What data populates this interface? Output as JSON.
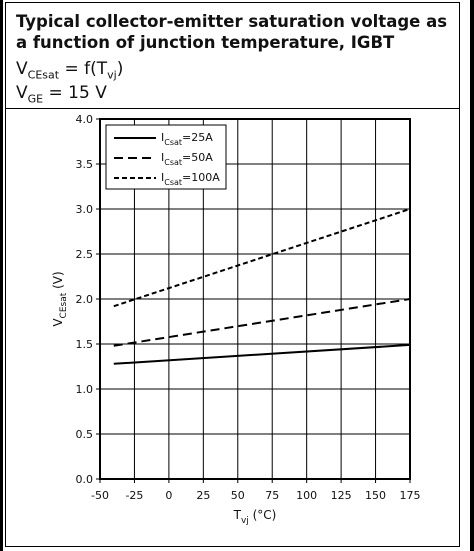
{
  "header": {
    "title": "Typical collector-emitter saturation voltage as a function of junction temperature, IGBT",
    "formula_line1": {
      "main": "V",
      "sub": "CEsat",
      "rest": " = f(T",
      "sub2": "vj",
      "end": ")"
    },
    "formula_line2": {
      "main": "V",
      "sub": "GE",
      "rest": " = 15 V"
    }
  },
  "chart_data": {
    "type": "line",
    "xlabel": {
      "main": "T",
      "sub": "vj",
      "rest": " (°C)"
    },
    "ylabel": {
      "main": "V",
      "sub": "CEsat",
      "rest": " (V)"
    },
    "xlim": [
      -50,
      175
    ],
    "ylim": [
      0.0,
      4.0
    ],
    "x_ticks": [
      "-50",
      "-25",
      "0",
      "25",
      "50",
      "75",
      "100",
      "125",
      "150",
      "175"
    ],
    "y_ticks": [
      "0.0",
      "0.5",
      "1.0",
      "1.5",
      "2.0",
      "2.5",
      "3.0",
      "3.5",
      "4.0"
    ],
    "grid": true,
    "legend_position": "top-left",
    "series": [
      {
        "name": "25A",
        "label_main": "I",
        "label_sub": "Csat",
        "label_rest": "=25A",
        "style": "solid",
        "x": [
          -40,
          175
        ],
        "y": [
          1.28,
          1.49
        ]
      },
      {
        "name": "50A",
        "label_main": "I",
        "label_sub": "Csat",
        "label_rest": "=50A",
        "style": "dashed",
        "x": [
          -40,
          175
        ],
        "y": [
          1.48,
          2.0
        ]
      },
      {
        "name": "100A",
        "label_main": "I",
        "label_sub": "Csat",
        "label_rest": "=100A",
        "style": "dashed-fine",
        "x": [
          -40,
          175
        ],
        "y": [
          1.92,
          3.0
        ]
      }
    ]
  }
}
